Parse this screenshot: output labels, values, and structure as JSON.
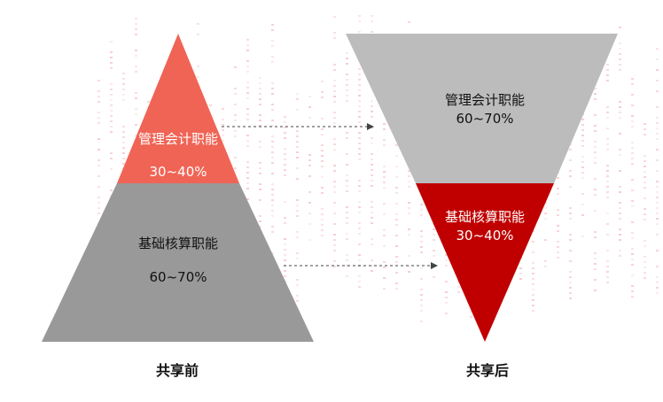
{
  "before": {
    "caption": "共享前",
    "top": {
      "name": "管理会计职能",
      "range": "30~40%"
    },
    "bottom": {
      "name": "基础核算职能",
      "range": "60~70%"
    }
  },
  "after": {
    "caption": "共享后",
    "top": {
      "name": "管理会计职能",
      "range": "60~70%"
    },
    "bottom": {
      "name": "基础核算职能",
      "range": "30~40%"
    }
  },
  "colors": {
    "before_top": "#f06455",
    "before_bottom": "#999999",
    "after_top": "#bcbcbc",
    "after_bottom": "#c00000",
    "arrow": "#444444",
    "dots": "#f2b6bd"
  }
}
